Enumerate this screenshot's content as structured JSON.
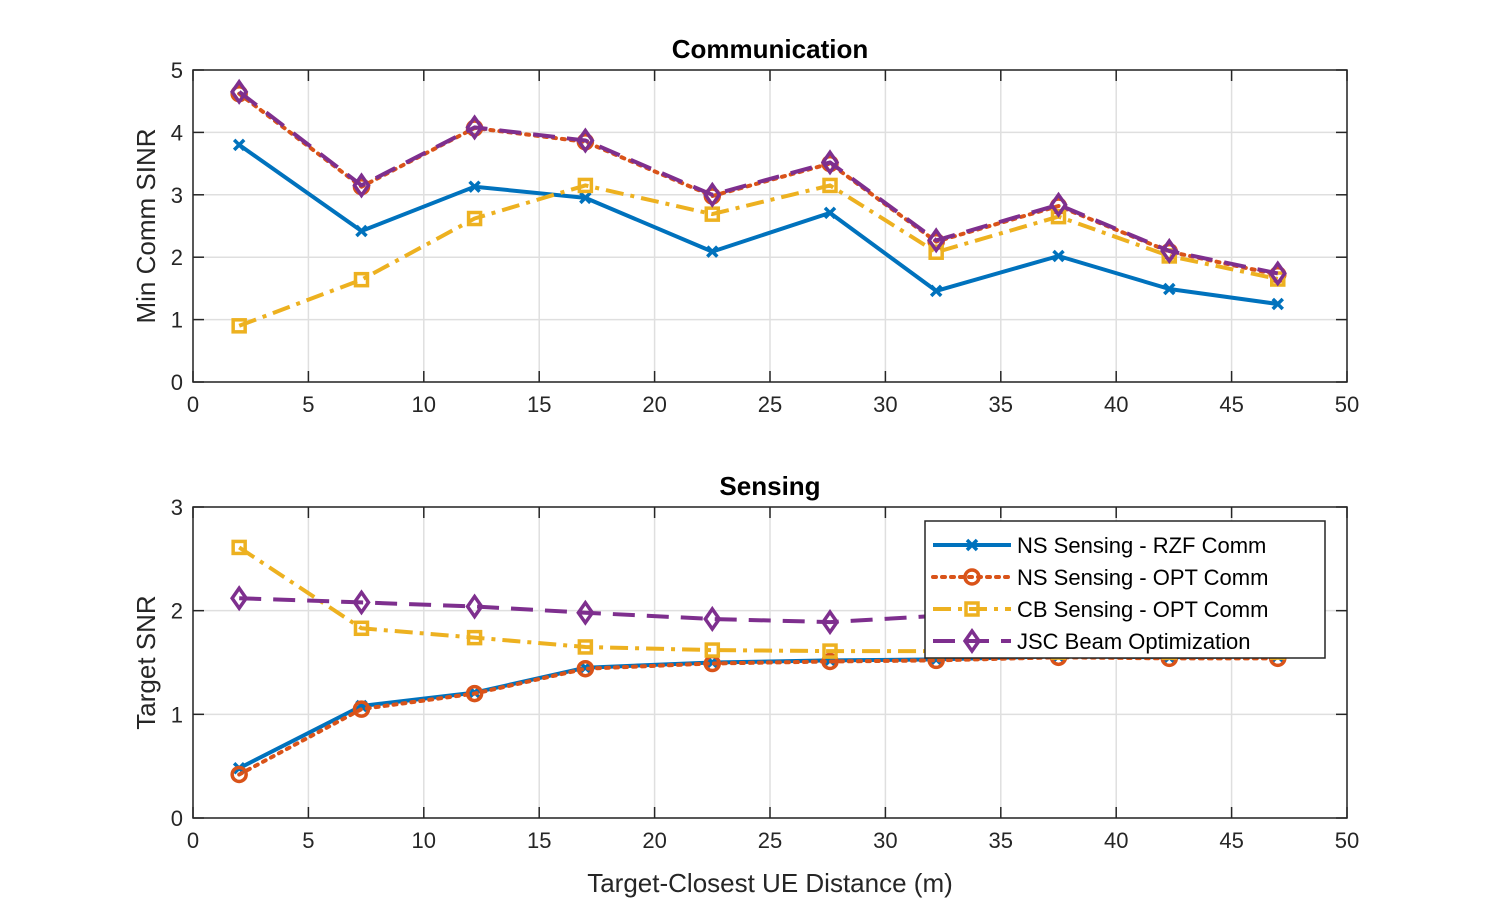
{
  "chart_data": [
    {
      "type": "line",
      "title": "Communication",
      "xlabel": "",
      "ylabel": "Min Comm SINR",
      "xlim": [
        0,
        50
      ],
      "ylim": [
        0,
        5
      ],
      "xticks": [
        0,
        5,
        10,
        15,
        20,
        25,
        30,
        35,
        40,
        45,
        50
      ],
      "yticks": [
        0,
        1,
        2,
        3,
        4,
        5
      ],
      "grid": true,
      "x": [
        2,
        7.3,
        12.2,
        17,
        22.5,
        27.6,
        32.2,
        37.5,
        42.3,
        47
      ],
      "series": [
        {
          "name": "NS Sensing - RZF Comm",
          "color": "#0072BD",
          "marker": "x",
          "dash": "solid",
          "values": [
            3.8,
            2.42,
            3.13,
            2.95,
            2.09,
            2.71,
            1.46,
            2.02,
            1.49,
            1.25
          ]
        },
        {
          "name": "NS Sensing - OPT Comm",
          "color": "#D95319",
          "marker": "o",
          "dash": "dotted",
          "values": [
            4.62,
            3.13,
            4.07,
            3.85,
            2.98,
            3.5,
            2.25,
            2.82,
            2.09,
            1.72
          ]
        },
        {
          "name": "CB Sensing - OPT Comm",
          "color": "#EDB120",
          "marker": "s",
          "dash": "dashdot",
          "values": [
            0.9,
            1.64,
            2.62,
            3.15,
            2.69,
            3.15,
            2.08,
            2.65,
            2.02,
            1.65
          ]
        },
        {
          "name": "JSC Beam Optimization",
          "color": "#7E2F8E",
          "marker": "d",
          "dash": "dashed",
          "values": [
            4.65,
            3.15,
            4.08,
            3.87,
            3.0,
            3.52,
            2.27,
            2.84,
            2.1,
            1.74
          ]
        }
      ]
    },
    {
      "type": "line",
      "title": "Sensing",
      "xlabel": "Target-Closest UE Distance (m)",
      "ylabel": "Target SNR",
      "xlim": [
        0,
        50
      ],
      "ylim": [
        0,
        3
      ],
      "xticks": [
        0,
        5,
        10,
        15,
        20,
        25,
        30,
        35,
        40,
        45,
        50
      ],
      "yticks": [
        0,
        1,
        2,
        3
      ],
      "grid": true,
      "legend": "top-right",
      "x": [
        2,
        7.3,
        12.2,
        17,
        22.5,
        27.6,
        32.2,
        37.5,
        42.3,
        47
      ],
      "series": [
        {
          "name": "NS Sensing - RZF Comm",
          "color": "#0072BD",
          "marker": "x",
          "dash": "solid",
          "values": [
            0.48,
            1.08,
            1.21,
            1.45,
            1.5,
            1.52,
            1.53,
            1.56,
            1.55,
            1.56
          ]
        },
        {
          "name": "NS Sensing - OPT Comm",
          "color": "#D95319",
          "marker": "o",
          "dash": "dotted",
          "values": [
            0.42,
            1.05,
            1.2,
            1.44,
            1.49,
            1.51,
            1.52,
            1.55,
            1.54,
            1.54
          ]
        },
        {
          "name": "CB Sensing - OPT Comm",
          "color": "#EDB120",
          "marker": "s",
          "dash": "dashdot",
          "values": [
            2.61,
            1.83,
            1.74,
            1.65,
            1.62,
            1.61,
            1.61,
            1.6,
            1.6,
            1.6
          ]
        },
        {
          "name": "JSC Beam Optimization",
          "color": "#7E2F8E",
          "marker": "d",
          "dash": "dashed",
          "values": [
            2.12,
            2.08,
            2.04,
            1.98,
            1.92,
            1.89,
            1.95,
            1.93,
            1.92,
            1.91
          ]
        }
      ]
    }
  ]
}
